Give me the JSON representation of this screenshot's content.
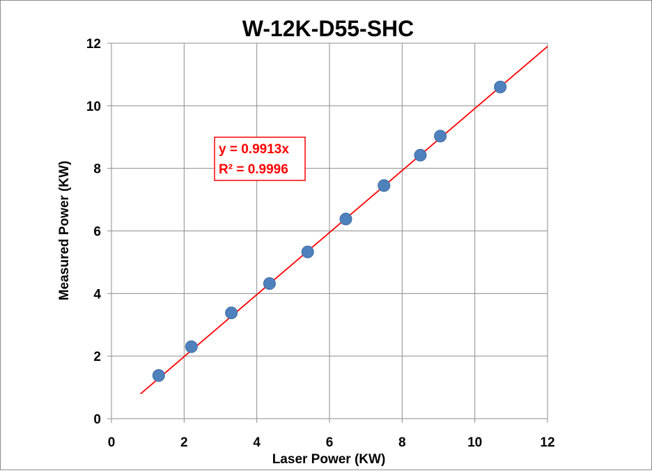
{
  "chart_data": {
    "type": "scatter",
    "title": "W-12K-D55-SHC",
    "xlabel": "Laser Power (KW)",
    "ylabel": "Measured Power (KW)",
    "xlim": [
      0,
      12
    ],
    "ylim": [
      0,
      12
    ],
    "xticks": [
      0,
      2,
      4,
      6,
      8,
      10,
      12
    ],
    "yticks": [
      0,
      2,
      4,
      6,
      8,
      10,
      12
    ],
    "x_tick_labels": [
      "0",
      "2",
      "4",
      "6",
      "8",
      "10",
      "12"
    ],
    "y_tick_labels": [
      "0",
      "2",
      "4",
      "6",
      "8",
      "10",
      "12"
    ],
    "grid": true,
    "series": [
      {
        "x": [
          1.3,
          2.2,
          3.3,
          4.35,
          5.4,
          6.45,
          7.5,
          8.5,
          9.05,
          10.7
        ],
        "y": [
          1.38,
          2.3,
          3.38,
          4.32,
          5.33,
          6.38,
          7.45,
          8.42,
          9.03,
          10.6
        ],
        "marker_color": "#4f81bd"
      }
    ],
    "trendline": {
      "type": "linear",
      "slope": 0.9913,
      "x_range": [
        0.8,
        12
      ],
      "color": "#ff0000",
      "equation_label": "y = 0.9913x",
      "r2_label": "R² = 0.9996"
    }
  }
}
